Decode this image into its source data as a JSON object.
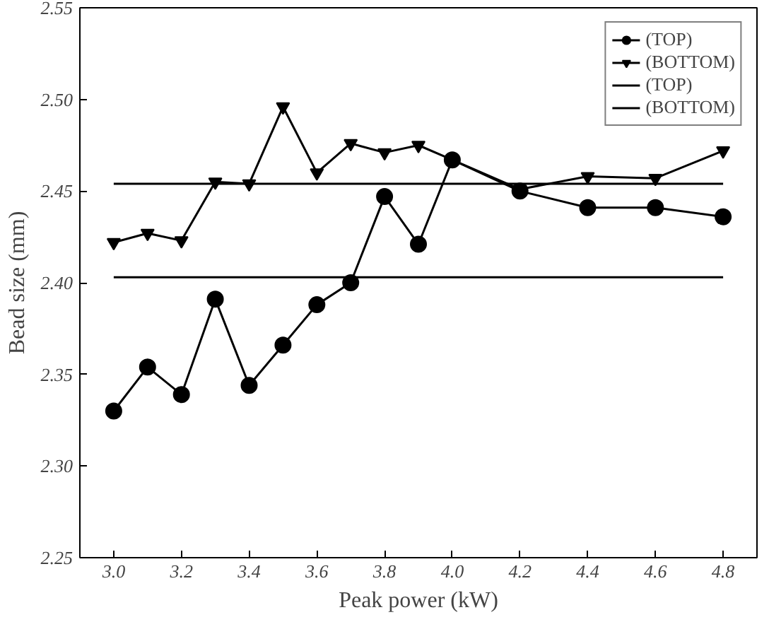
{
  "chart_data": {
    "type": "line",
    "xlabel": "Peak power (kW)",
    "ylabel": "Bead size (mm)",
    "xlim": [
      2.9,
      4.9
    ],
    "ylim": [
      2.25,
      2.55
    ],
    "xticks": [
      {
        "value": 3.0,
        "label": "3.0"
      },
      {
        "value": 3.2,
        "label": "3.2"
      },
      {
        "value": 3.4,
        "label": "3.4"
      },
      {
        "value": 3.6,
        "label": "3.6"
      },
      {
        "value": 3.8,
        "label": "3.8"
      },
      {
        "value": 4.0,
        "label": "4.0"
      },
      {
        "value": 4.2,
        "label": "4.2"
      },
      {
        "value": 4.4,
        "label": "4.4"
      },
      {
        "value": 4.6,
        "label": "4.6"
      },
      {
        "value": 4.8,
        "label": "4.8"
      }
    ],
    "yticks": [
      {
        "value": 2.25,
        "label": "2.25"
      },
      {
        "value": 2.3,
        "label": "2.30"
      },
      {
        "value": 2.35,
        "label": "2.35"
      },
      {
        "value": 2.4,
        "label": "2.40"
      },
      {
        "value": 2.45,
        "label": "2.45"
      },
      {
        "value": 2.5,
        "label": "2.50"
      },
      {
        "value": 2.55,
        "label": "2.55"
      }
    ],
    "grid": false,
    "legend": "top right",
    "line_style": "solid",
    "series": [
      {
        "name": "(TOP)",
        "color": "#000000",
        "marker": "circle",
        "x": [
          3.0,
          3.1,
          3.2,
          3.3,
          3.4,
          3.5,
          3.6,
          3.7,
          3.8,
          3.9,
          4.0,
          4.2,
          4.4,
          4.6,
          4.8
        ],
        "values": [
          2.33,
          2.354,
          2.339,
          2.391,
          2.344,
          2.366,
          2.388,
          2.4,
          2.447,
          2.421,
          2.467,
          2.45,
          2.441,
          2.441,
          2.436
        ]
      },
      {
        "name": "(BOTTOM)",
        "color": "#000000",
        "marker": "triangle",
        "x": [
          3.0,
          3.1,
          3.2,
          3.3,
          3.4,
          3.5,
          3.6,
          3.7,
          3.8,
          3.9,
          4.0,
          4.2,
          4.4,
          4.6,
          4.8
        ],
        "values": [
          2.422,
          2.427,
          2.423,
          2.455,
          2.454,
          2.496,
          2.46,
          2.476,
          2.471,
          2.475,
          2.467,
          2.451,
          2.458,
          2.457,
          2.472
        ]
      },
      {
        "name": "(TOP)",
        "color": "#000000",
        "marker": "none",
        "x": [
          3.0,
          4.8
        ],
        "values": [
          2.403,
          2.403
        ]
      },
      {
        "name": "(BOTTOM)",
        "color": "#000000",
        "marker": "none",
        "x": [
          3.0,
          4.8
        ],
        "values": [
          2.454,
          2.454
        ]
      }
    ]
  }
}
